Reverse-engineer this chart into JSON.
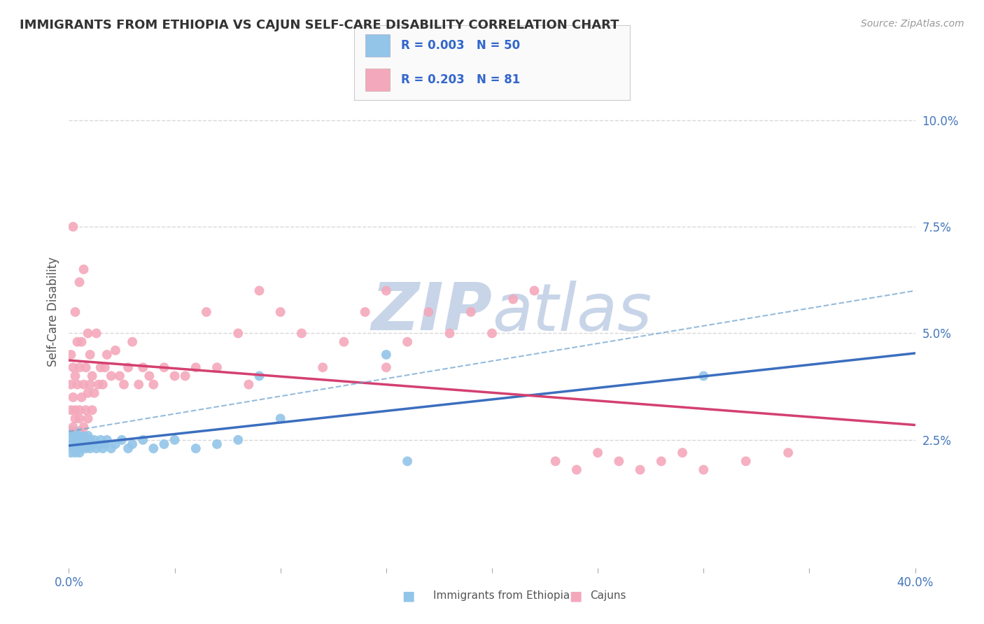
{
  "title": "IMMIGRANTS FROM ETHIOPIA VS CAJUN SELF-CARE DISABILITY CORRELATION CHART",
  "source_text": "Source: ZipAtlas.com",
  "ylabel": "Self-Care Disability",
  "xlim": [
    0.0,
    0.4
  ],
  "ylim": [
    -0.005,
    0.115
  ],
  "xtick_vals": [
    0.0,
    0.05,
    0.1,
    0.15,
    0.2,
    0.25,
    0.3,
    0.35,
    0.4
  ],
  "xtick_labels_show": [
    "0.0%",
    "",
    "",
    "",
    "",
    "",
    "",
    "",
    "40.0%"
  ],
  "ytick_vals_right": [
    0.025,
    0.05,
    0.075,
    0.1
  ],
  "ytick_labels_right": [
    "2.5%",
    "5.0%",
    "7.5%",
    "10.0%"
  ],
  "legend_labels": [
    "Immigrants from Ethiopia",
    "Cajuns"
  ],
  "series1_label": "R = 0.003   N = 50",
  "series2_label": "R = 0.203   N = 81",
  "color_blue": "#92C5E8",
  "color_pink": "#F4A8BB",
  "trend_color_blue": "#3B6EBF",
  "trend_color_pink": "#D44070",
  "trend_color_blue_dashed": "#6B9FCC",
  "background_color": "#FFFFFF",
  "grid_color": "#D8D8D8",
  "watermark_color": "#C8D5E8",
  "blue_x": [
    0.001,
    0.001,
    0.001,
    0.002,
    0.002,
    0.002,
    0.003,
    0.003,
    0.003,
    0.004,
    0.004,
    0.004,
    0.005,
    0.005,
    0.005,
    0.006,
    0.006,
    0.007,
    0.007,
    0.008,
    0.008,
    0.009,
    0.009,
    0.01,
    0.01,
    0.011,
    0.012,
    0.013,
    0.014,
    0.015,
    0.016,
    0.017,
    0.018,
    0.02,
    0.022,
    0.025,
    0.028,
    0.03,
    0.035,
    0.04,
    0.045,
    0.05,
    0.06,
    0.07,
    0.08,
    0.09,
    0.1,
    0.15,
    0.16,
    0.3
  ],
  "blue_y": [
    0.027,
    0.024,
    0.022,
    0.026,
    0.025,
    0.023,
    0.027,
    0.024,
    0.022,
    0.026,
    0.025,
    0.023,
    0.027,
    0.024,
    0.022,
    0.025,
    0.023,
    0.026,
    0.024,
    0.025,
    0.023,
    0.026,
    0.024,
    0.025,
    0.023,
    0.024,
    0.025,
    0.023,
    0.024,
    0.025,
    0.023,
    0.024,
    0.025,
    0.023,
    0.024,
    0.025,
    0.023,
    0.024,
    0.025,
    0.023,
    0.024,
    0.025,
    0.023,
    0.024,
    0.025,
    0.04,
    0.03,
    0.045,
    0.02,
    0.04
  ],
  "pink_x": [
    0.001,
    0.001,
    0.001,
    0.002,
    0.002,
    0.002,
    0.002,
    0.003,
    0.003,
    0.003,
    0.004,
    0.004,
    0.005,
    0.005,
    0.005,
    0.006,
    0.006,
    0.007,
    0.007,
    0.008,
    0.008,
    0.009,
    0.009,
    0.01,
    0.01,
    0.011,
    0.012,
    0.013,
    0.014,
    0.015,
    0.016,
    0.017,
    0.018,
    0.02,
    0.022,
    0.024,
    0.026,
    0.028,
    0.03,
    0.033,
    0.035,
    0.038,
    0.04,
    0.045,
    0.05,
    0.055,
    0.06,
    0.065,
    0.07,
    0.08,
    0.085,
    0.09,
    0.1,
    0.11,
    0.12,
    0.13,
    0.14,
    0.15,
    0.16,
    0.17,
    0.18,
    0.19,
    0.2,
    0.21,
    0.22,
    0.23,
    0.24,
    0.25,
    0.26,
    0.27,
    0.28,
    0.29,
    0.3,
    0.32,
    0.34,
    0.003,
    0.005,
    0.007,
    0.009,
    0.011,
    0.15
  ],
  "pink_y": [
    0.038,
    0.032,
    0.045,
    0.035,
    0.028,
    0.075,
    0.042,
    0.032,
    0.055,
    0.04,
    0.038,
    0.048,
    0.03,
    0.042,
    0.062,
    0.035,
    0.048,
    0.038,
    0.065,
    0.032,
    0.042,
    0.05,
    0.036,
    0.038,
    0.045,
    0.04,
    0.036,
    0.05,
    0.038,
    0.042,
    0.038,
    0.042,
    0.045,
    0.04,
    0.046,
    0.04,
    0.038,
    0.042,
    0.048,
    0.038,
    0.042,
    0.04,
    0.038,
    0.042,
    0.04,
    0.04,
    0.042,
    0.055,
    0.042,
    0.05,
    0.038,
    0.06,
    0.055,
    0.05,
    0.042,
    0.048,
    0.055,
    0.042,
    0.048,
    0.055,
    0.05,
    0.055,
    0.05,
    0.058,
    0.06,
    0.02,
    0.018,
    0.022,
    0.02,
    0.018,
    0.02,
    0.022,
    0.018,
    0.02,
    0.022,
    0.03,
    0.032,
    0.028,
    0.03,
    0.032,
    0.06
  ]
}
